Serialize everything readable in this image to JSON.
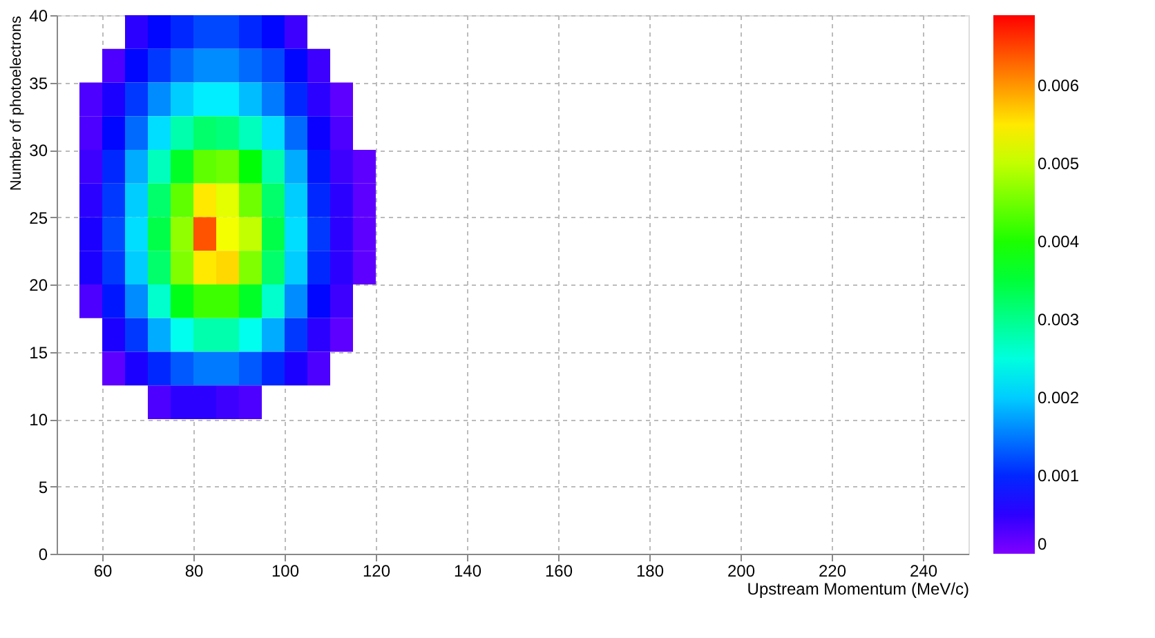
{
  "chart_data": {
    "type": "heatmap",
    "xlabel": "Upstream Momentum (MeV/c)",
    "ylabel": "Number of photoelectrons",
    "x": [
      57.5,
      62.5,
      67.5,
      72.5,
      77.5,
      82.5,
      87.5,
      92.5,
      97.5,
      102.5,
      107.5,
      112.5,
      117.5
    ],
    "y": [
      38.75,
      36.25,
      33.75,
      31.25,
      28.75,
      26.25,
      23.75,
      21.25,
      18.75,
      16.25,
      13.75,
      11.25
    ],
    "cells": [
      [
        null,
        null,
        0.0005,
        0.0008,
        0.001,
        0.0012,
        0.0012,
        0.001,
        0.0008,
        0.0004,
        null,
        null,
        null
      ],
      [
        null,
        0.0003,
        0.0008,
        0.0011,
        0.0014,
        0.0016,
        0.0016,
        0.0014,
        0.0012,
        0.0008,
        0.0004,
        null,
        null
      ],
      [
        0.0003,
        0.0006,
        0.0011,
        0.0016,
        0.002,
        0.0022,
        0.0022,
        0.0019,
        0.0015,
        0.001,
        0.0005,
        0.0002,
        null
      ],
      [
        0.0003,
        0.0008,
        0.0014,
        0.0021,
        0.0028,
        0.0032,
        0.0031,
        0.0027,
        0.0021,
        0.0014,
        0.0007,
        0.0003,
        null
      ],
      [
        0.0004,
        0.001,
        0.0018,
        0.0027,
        0.0036,
        0.0044,
        0.0045,
        0.0038,
        0.0028,
        0.0018,
        0.0009,
        0.0004,
        0.0002
      ],
      [
        0.0005,
        0.0011,
        0.002,
        0.0032,
        0.0044,
        0.0055,
        0.0052,
        0.0045,
        0.0032,
        0.002,
        0.001,
        0.0005,
        0.0002
      ],
      [
        0.0006,
        0.0012,
        0.0021,
        0.0034,
        0.0047,
        0.0064,
        0.0053,
        0.005,
        0.0034,
        0.0021,
        0.0011,
        0.0005,
        0.0002
      ],
      [
        0.0006,
        0.0011,
        0.002,
        0.0032,
        0.0046,
        0.0055,
        0.0056,
        0.0046,
        0.0032,
        0.002,
        0.001,
        0.0005,
        0.0002
      ],
      [
        0.0003,
        0.0009,
        0.0016,
        0.0026,
        0.0037,
        0.0042,
        0.0042,
        0.0036,
        0.0026,
        0.0016,
        0.0008,
        0.0004,
        null
      ],
      [
        null,
        0.0006,
        0.0011,
        0.0018,
        0.0024,
        0.0028,
        0.0028,
        0.0024,
        0.0018,
        0.0011,
        0.0005,
        0.0002,
        null
      ],
      [
        null,
        0.0002,
        0.0006,
        0.001,
        0.0013,
        0.0015,
        0.0015,
        0.0013,
        0.001,
        0.0006,
        0.0003,
        null,
        null
      ],
      [
        null,
        null,
        null,
        0.0003,
        0.0005,
        0.0005,
        0.0004,
        0.0003,
        null,
        null,
        null,
        null,
        null
      ]
    ],
    "xlim": [
      50,
      250
    ],
    "xticks": [
      60,
      80,
      100,
      120,
      140,
      160,
      180,
      200,
      220,
      240
    ],
    "ylim": [
      0,
      40
    ],
    "yticks": [
      0,
      5,
      10,
      15,
      20,
      25,
      30,
      35,
      40
    ],
    "clim": [
      0,
      0.0069
    ],
    "cticks": [
      0,
      0.001,
      0.002,
      0.003,
      0.004,
      0.005,
      0.006
    ],
    "colors": [
      "#7f00ff",
      "#0000ff",
      "#0080ff",
      "#00ffff",
      "#00ff80",
      "#00ff00",
      "#80ff00",
      "#ffff00",
      "#ff8000",
      "#ff0000"
    ],
    "grid": true
  }
}
